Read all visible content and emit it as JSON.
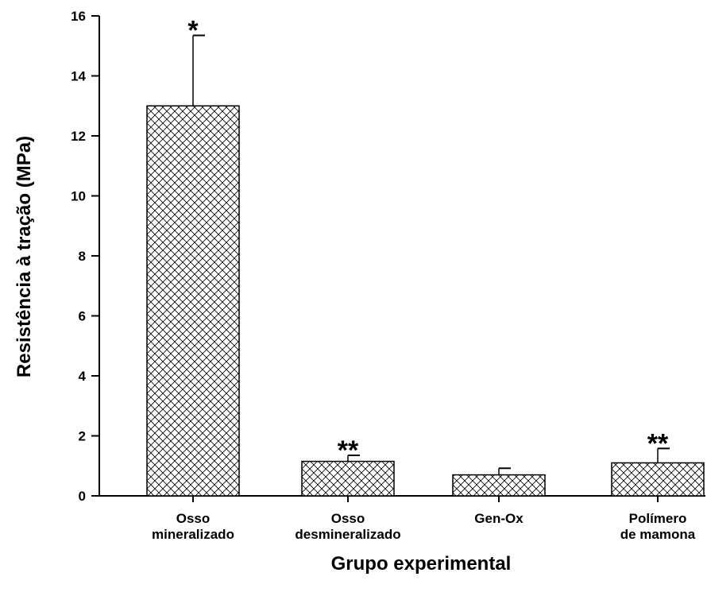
{
  "chart_data": {
    "type": "bar",
    "title": "",
    "xlabel": "Grupo experimental",
    "ylabel": "Resistência à tração (MPa)",
    "ylim": [
      0,
      16
    ],
    "yticks": [
      0,
      2,
      4,
      6,
      8,
      10,
      12,
      14,
      16
    ],
    "categories": [
      [
        "Osso",
        "mineralizado"
      ],
      [
        "Osso",
        "desmineralizado"
      ],
      [
        "Gen-Ox"
      ],
      [
        "Polímero",
        "de mamona"
      ]
    ],
    "values": [
      13.0,
      1.15,
      0.7,
      1.1
    ],
    "error_upper": [
      2.35,
      0.2,
      0.22,
      0.48
    ],
    "significance": [
      "*",
      "**",
      "",
      "**"
    ],
    "bar_fill": "crosshatch",
    "grid": false,
    "legend": "none"
  }
}
